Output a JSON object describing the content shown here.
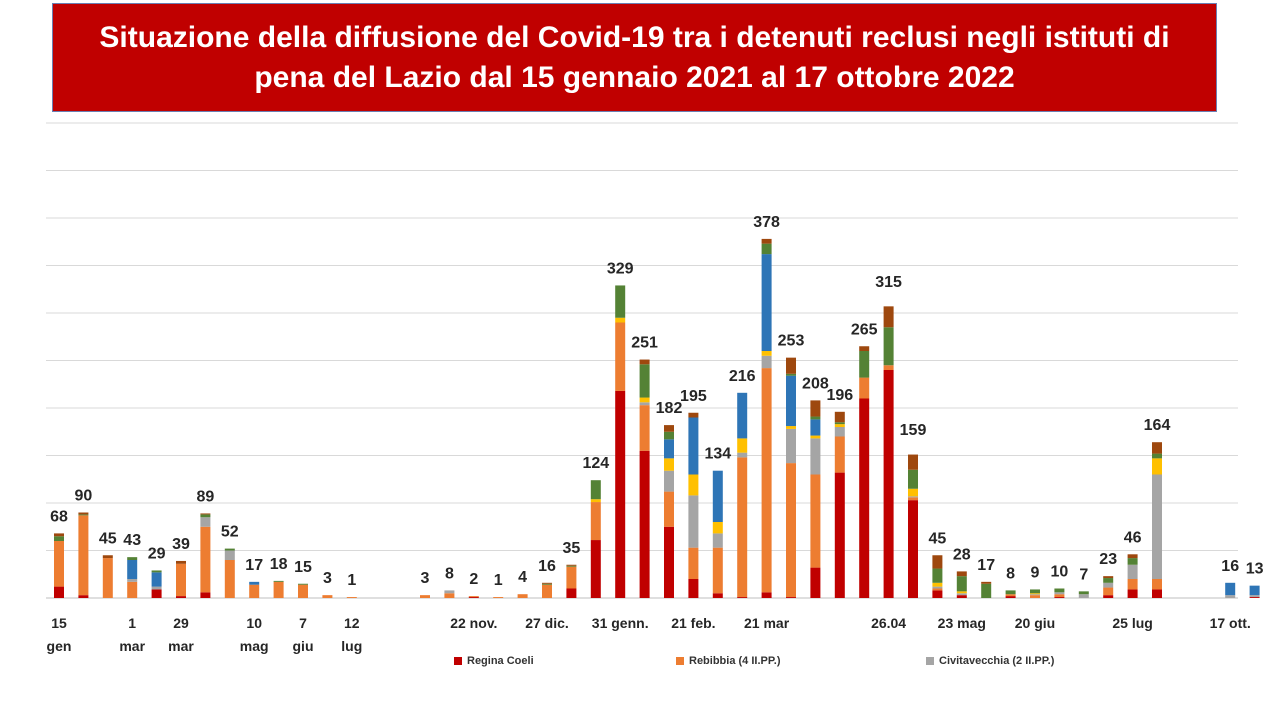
{
  "title": "Situazione della diffusione del Covid-19 tra i detenuti reclusi negli istituti di pena del Lazio dal 15 gennaio 2021 al 17 ottobre 2022",
  "chart_data": {
    "type": "bar",
    "stacked": true,
    "grid": true,
    "ylim": [
      0,
      500
    ],
    "legend_position": "bottom",
    "series_colors": [
      "#c00000",
      "#ed7d31",
      "#a5a5a5",
      "#ffc000",
      "#2e75b6",
      "#548235",
      "#9e480e"
    ],
    "legend": [
      {
        "name": "Regina Coeli",
        "color": "#c00000"
      },
      {
        "name": "Rebibbia (4 II.PP.)",
        "color": "#ed7d31"
      },
      {
        "name": "Civitavecchia (2 II.PP.)",
        "color": "#a5a5a5"
      }
    ],
    "bars": [
      {
        "total": 68,
        "label": "68",
        "stack": [
          12,
          48,
          0,
          0,
          0,
          5,
          3
        ]
      },
      {
        "total": 90,
        "label": "90",
        "stack": [
          3,
          84,
          0,
          0,
          0,
          1,
          2
        ]
      },
      {
        "total": 45,
        "label": "45",
        "stack": [
          0,
          42,
          0,
          0,
          0,
          0,
          3
        ]
      },
      {
        "total": 43,
        "label": "43",
        "stack": [
          0,
          17,
          3,
          0,
          20,
          3,
          0
        ]
      },
      {
        "total": 29,
        "label": "29",
        "stack": [
          9,
          0,
          3,
          0,
          15,
          2,
          0
        ]
      },
      {
        "total": 39,
        "label": "39",
        "stack": [
          2,
          34,
          0,
          0,
          0,
          0,
          3
        ]
      },
      {
        "total": 89,
        "label": "89",
        "stack": [
          6,
          69,
          10,
          0,
          0,
          3,
          1
        ]
      },
      {
        "total": 52,
        "label": "52",
        "stack": [
          0,
          40,
          10,
          0,
          0,
          2,
          0
        ]
      },
      {
        "total": 17,
        "label": "17",
        "stack": [
          0,
          14,
          0,
          0,
          3,
          0,
          0
        ]
      },
      {
        "total": 18,
        "label": "18",
        "stack": [
          0,
          17,
          0,
          0,
          0,
          1,
          0
        ]
      },
      {
        "total": 15,
        "label": "15",
        "stack": [
          0,
          14,
          0,
          0,
          0,
          1,
          0
        ]
      },
      {
        "total": 3,
        "label": "3",
        "stack": [
          0,
          3,
          0,
          0,
          0,
          0,
          0
        ]
      },
      {
        "total": 1,
        "label": "1",
        "stack": [
          0,
          1,
          0,
          0,
          0,
          0,
          0
        ]
      },
      {
        "total": 0,
        "label": "",
        "stack": [
          0,
          0,
          0,
          0,
          0,
          0,
          0
        ]
      },
      {
        "total": 0,
        "label": "",
        "stack": [
          0,
          0,
          0,
          0,
          0,
          0,
          0
        ]
      },
      {
        "total": 3,
        "label": "3",
        "stack": [
          0,
          3,
          0,
          0,
          0,
          0,
          0
        ]
      },
      {
        "total": 8,
        "label": "8",
        "stack": [
          0,
          5,
          3,
          0,
          0,
          0,
          0
        ]
      },
      {
        "total": 2,
        "label": "2",
        "stack": [
          1,
          1,
          0,
          0,
          0,
          0,
          0
        ]
      },
      {
        "total": 1,
        "label": "1",
        "stack": [
          0,
          1,
          0,
          0,
          0,
          0,
          0
        ]
      },
      {
        "total": 4,
        "label": "4",
        "stack": [
          0,
          4,
          0,
          0,
          0,
          0,
          0
        ]
      },
      {
        "total": 16,
        "label": "16",
        "stack": [
          0,
          14,
          0,
          0,
          0,
          1,
          1
        ]
      },
      {
        "total": 35,
        "label": "35",
        "stack": [
          10,
          23,
          0,
          0,
          0,
          1,
          1
        ]
      },
      {
        "total": 124,
        "label": "124",
        "stack": [
          61,
          40,
          0,
          3,
          0,
          20,
          0
        ]
      },
      {
        "total": 329,
        "label": "329",
        "stack": [
          218,
          72,
          0,
          5,
          0,
          34,
          0
        ]
      },
      {
        "total": 251,
        "label": "251",
        "stack": [
          155,
          48,
          3,
          5,
          0,
          35,
          5
        ]
      },
      {
        "total": 182,
        "label": "182",
        "stack": [
          75,
          37,
          22,
          13,
          20,
          8,
          7
        ]
      },
      {
        "total": 195,
        "label": "195",
        "stack": [
          20,
          33,
          55,
          22,
          60,
          0,
          5
        ]
      },
      {
        "total": 134,
        "label": "134",
        "stack": [
          5,
          48,
          15,
          12,
          54,
          0,
          0
        ]
      },
      {
        "total": 216,
        "label": "216",
        "stack": [
          1,
          147,
          5,
          15,
          48,
          0,
          0
        ]
      },
      {
        "total": 378,
        "label": "378",
        "stack": [
          6,
          236,
          13,
          5,
          102,
          11,
          5
        ]
      },
      {
        "total": 253,
        "label": "253",
        "stack": [
          1,
          141,
          36,
          3,
          53,
          2,
          17
        ]
      },
      {
        "total": 208,
        "label": "208",
        "stack": [
          32,
          98,
          38,
          3,
          17,
          3,
          17
        ]
      },
      {
        "total": 196,
        "label": "196",
        "stack": [
          132,
          38,
          10,
          3,
          0,
          2,
          11
        ]
      },
      {
        "total": 265,
        "label": "265",
        "stack": [
          210,
          22,
          0,
          0,
          0,
          28,
          5
        ]
      },
      {
        "total": 315,
        "label": "315",
        "stack": [
          240,
          5,
          0,
          0,
          0,
          40,
          22
        ]
      },
      {
        "total": 159,
        "label": "159",
        "stack": [
          103,
          3,
          1,
          8,
          0,
          20,
          16
        ]
      },
      {
        "total": 45,
        "label": "45",
        "stack": [
          8,
          2,
          2,
          4,
          0,
          15,
          14
        ]
      },
      {
        "total": 28,
        "label": "28",
        "stack": [
          3,
          0,
          2,
          2,
          0,
          16,
          5
        ]
      },
      {
        "total": 17,
        "label": "17",
        "stack": [
          0,
          0,
          0,
          0,
          0,
          15,
          2
        ]
      },
      {
        "total": 8,
        "label": "8",
        "stack": [
          2,
          2,
          0,
          0,
          0,
          4,
          0
        ]
      },
      {
        "total": 9,
        "label": "9",
        "stack": [
          0,
          3,
          1,
          1,
          0,
          4,
          0
        ]
      },
      {
        "total": 10,
        "label": "10",
        "stack": [
          1,
          3,
          2,
          0,
          0,
          4,
          0
        ]
      },
      {
        "total": 7,
        "label": "7",
        "stack": [
          0,
          0,
          4,
          0,
          0,
          3,
          0
        ]
      },
      {
        "total": 23,
        "label": "23",
        "stack": [
          3,
          8,
          5,
          0,
          0,
          5,
          2
        ]
      },
      {
        "total": 46,
        "label": "46",
        "stack": [
          9,
          11,
          15,
          0,
          0,
          7,
          4
        ]
      },
      {
        "total": 164,
        "label": "164",
        "stack": [
          9,
          11,
          110,
          17,
          0,
          5,
          12
        ]
      },
      {
        "total": 0,
        "label": "",
        "stack": [
          0,
          0,
          0,
          0,
          0,
          0,
          0
        ]
      },
      {
        "total": 0,
        "label": "",
        "stack": [
          0,
          0,
          0,
          0,
          0,
          0,
          0
        ]
      },
      {
        "total": 16,
        "label": "16",
        "stack": [
          0,
          0,
          3,
          0,
          13,
          0,
          0
        ]
      },
      {
        "total": 13,
        "label": "13",
        "stack": [
          1,
          0,
          2,
          0,
          10,
          0,
          0
        ]
      }
    ],
    "x_labels": [
      {
        "bar": 0,
        "line1": "15",
        "line2": "gen"
      },
      {
        "bar": 3,
        "line1": "1",
        "line2": "mar"
      },
      {
        "bar": 5,
        "line1": "29",
        "line2": "mar"
      },
      {
        "bar": 8,
        "line1": "10",
        "line2": "mag"
      },
      {
        "bar": 10,
        "line1": "7",
        "line2": "giu"
      },
      {
        "bar": 12,
        "line1": "12",
        "line2": "lug"
      },
      {
        "bar": 17,
        "line1": "22 nov.",
        "line2": ""
      },
      {
        "bar": 20,
        "line1": "27 dic.",
        "line2": ""
      },
      {
        "bar": 23,
        "line1": "31 genn.",
        "line2": ""
      },
      {
        "bar": 26,
        "line1": "21 feb.",
        "line2": ""
      },
      {
        "bar": 29,
        "line1": "21 mar",
        "line2": ""
      },
      {
        "bar": 34,
        "line1": "26.04",
        "line2": ""
      },
      {
        "bar": 37,
        "line1": "23 mag",
        "line2": ""
      },
      {
        "bar": 40,
        "line1": "20 giu",
        "line2": ""
      },
      {
        "bar": 44,
        "line1": "25 lug",
        "line2": ""
      },
      {
        "bar": 48,
        "line1": "17 ott.",
        "line2": ""
      }
    ]
  }
}
